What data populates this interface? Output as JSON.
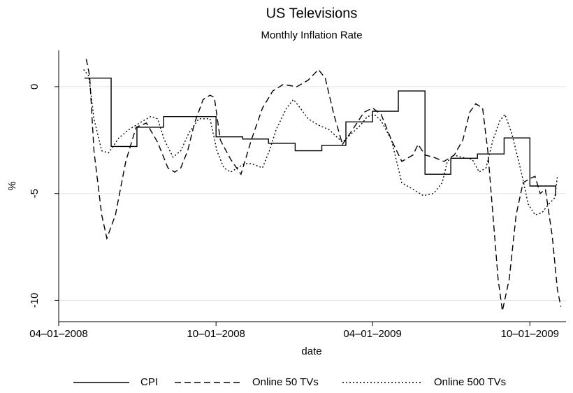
{
  "chart_data": {
    "type": "line",
    "title": "US Televisions",
    "subtitle": "Monthly Inflation Rate",
    "xlabel": "date",
    "ylabel": "%",
    "xlim": [
      "2008-04-01",
      "2009-11-12"
    ],
    "xticks": [
      {
        "value": "2008-04-01",
        "label": "04–01–2008"
      },
      {
        "value": "2008-10-01",
        "label": "10–01–2008"
      },
      {
        "value": "2009-04-01",
        "label": "04–01–2009"
      },
      {
        "value": "2009-10-01",
        "label": "10–01–2009"
      }
    ],
    "ylim": [
      -11,
      1.7
    ],
    "yticks": [
      0,
      -5,
      -10
    ],
    "grid": true,
    "legend": "bottom",
    "series": [
      {
        "name": "CPI",
        "color": "#000000",
        "dash": "solid",
        "step": true,
        "x": [
          "2008-05-01",
          "2008-06-01",
          "2008-07-01",
          "2008-08-01",
          "2008-09-01",
          "2008-10-01",
          "2008-11-01",
          "2008-12-01",
          "2009-01-01",
          "2009-02-01",
          "2009-03-01",
          "2009-04-01",
          "2009-05-01",
          "2009-06-01",
          "2009-07-01",
          "2009-08-01",
          "2009-09-01",
          "2009-10-01",
          "2009-10-31"
        ],
        "values": [
          0.4,
          -2.8,
          -1.9,
          -1.4,
          -1.4,
          -2.35,
          -2.45,
          -2.65,
          -3.0,
          -2.75,
          -1.65,
          -1.15,
          -0.2,
          -4.1,
          -3.35,
          -3.15,
          -2.4,
          -4.65,
          -5.1
        ]
      },
      {
        "name": "Online 50 TVs",
        "color": "#000000",
        "dash": "dashed",
        "x": [
          "2008-05-03",
          "2008-05-07",
          "2008-05-12",
          "2008-05-21",
          "2008-05-27",
          "2008-06-06",
          "2008-06-18",
          "2008-06-30",
          "2008-07-12",
          "2008-07-25",
          "2008-08-06",
          "2008-08-14",
          "2008-08-21",
          "2008-08-29",
          "2008-09-06",
          "2008-09-16",
          "2008-09-24",
          "2008-09-29",
          "2008-10-06",
          "2008-10-18",
          "2008-10-30",
          "2008-11-11",
          "2008-11-24",
          "2008-12-06",
          "2008-12-18",
          "2009-01-03",
          "2009-01-16",
          "2009-01-28",
          "2009-02-05",
          "2009-02-15",
          "2009-02-25",
          "2009-03-09",
          "2009-03-22",
          "2009-04-01",
          "2009-04-11",
          "2009-04-23",
          "2009-05-05",
          "2009-05-18",
          "2009-05-24",
          "2009-06-01",
          "2009-06-11",
          "2009-06-23",
          "2009-07-05",
          "2009-07-15",
          "2009-07-23",
          "2009-07-30",
          "2009-08-07",
          "2009-08-13",
          "2009-08-19",
          "2009-08-25",
          "2009-08-30",
          "2009-09-07",
          "2009-09-15",
          "2009-09-23",
          "2009-10-01",
          "2009-10-07",
          "2009-10-13",
          "2009-10-19",
          "2009-10-27",
          "2009-11-02",
          "2009-11-06"
        ],
        "values": [
          1.3,
          0.5,
          -3,
          -6,
          -7.1,
          -6,
          -3.5,
          -1.9,
          -1.7,
          -2.6,
          -3.8,
          -4.0,
          -3.8,
          -3.0,
          -1.7,
          -0.6,
          -0.4,
          -0.5,
          -2.5,
          -3.4,
          -4.1,
          -2.5,
          -1.0,
          -0.2,
          0.1,
          0,
          0.3,
          0.8,
          0.4,
          -1.3,
          -2.7,
          -2.0,
          -1.2,
          -1.0,
          -1.3,
          -2.5,
          -3.5,
          -3.2,
          -2.7,
          -3.2,
          -3.3,
          -3.5,
          -3.2,
          -2.5,
          -1.2,
          -0.8,
          -1.0,
          -3,
          -6,
          -9,
          -10.5,
          -9,
          -6,
          -4.5,
          -4.3,
          -4.2,
          -5.0,
          -4.8,
          -7,
          -9.5,
          -10.3
        ]
      },
      {
        "name": "Online 500 TVs",
        "color": "#000000",
        "dash": "dotted",
        "x": [
          "2008-04-30",
          "2008-05-06",
          "2008-05-12",
          "2008-05-21",
          "2008-05-29",
          "2008-06-10",
          "2008-06-22",
          "2008-07-04",
          "2008-07-17",
          "2008-07-25",
          "2008-08-02",
          "2008-08-12",
          "2008-08-21",
          "2008-08-30",
          "2008-09-11",
          "2008-09-24",
          "2008-10-02",
          "2008-10-10",
          "2008-10-18",
          "2008-10-26",
          "2008-11-03",
          "2008-11-11",
          "2008-11-24",
          "2008-12-02",
          "2008-12-10",
          "2008-12-22",
          "2008-12-30",
          "2009-01-07",
          "2009-01-16",
          "2009-01-28",
          "2009-02-09",
          "2009-02-17",
          "2009-02-25",
          "2009-03-05",
          "2009-03-18",
          "2009-03-26",
          "2009-04-03",
          "2009-04-11",
          "2009-04-23",
          "2009-05-05",
          "2009-05-18",
          "2009-05-30",
          "2009-06-11",
          "2009-06-21",
          "2009-06-27",
          "2009-07-05",
          "2009-07-13",
          "2009-07-26",
          "2009-08-03",
          "2009-08-11",
          "2009-08-19",
          "2009-08-27",
          "2009-09-02",
          "2009-09-10",
          "2009-09-21",
          "2009-09-29",
          "2009-10-07",
          "2009-10-15",
          "2009-10-23",
          "2009-10-30",
          "2009-11-02"
        ],
        "values": [
          0.8,
          0.5,
          -1.5,
          -3.0,
          -3.1,
          -2.4,
          -2.0,
          -1.7,
          -1.4,
          -1.5,
          -2.5,
          -3.3,
          -3.0,
          -2.2,
          -1.5,
          -1.5,
          -3.0,
          -3.8,
          -4.0,
          -3.8,
          -3.6,
          -3.6,
          -3.8,
          -3.0,
          -2.0,
          -1.0,
          -0.6,
          -1.0,
          -1.5,
          -1.8,
          -2.0,
          -2.3,
          -2.6,
          -2.3,
          -1.8,
          -1.4,
          -1.3,
          -1.6,
          -2.5,
          -4.5,
          -4.8,
          -5.1,
          -5.0,
          -4.5,
          -3.5,
          -3.2,
          -3.3,
          -3.4,
          -4.0,
          -3.8,
          -2.5,
          -1.6,
          -1.3,
          -2.2,
          -4.0,
          -5.5,
          -6.0,
          -5.9,
          -5.5,
          -5.2,
          -4.2
        ]
      }
    ]
  }
}
